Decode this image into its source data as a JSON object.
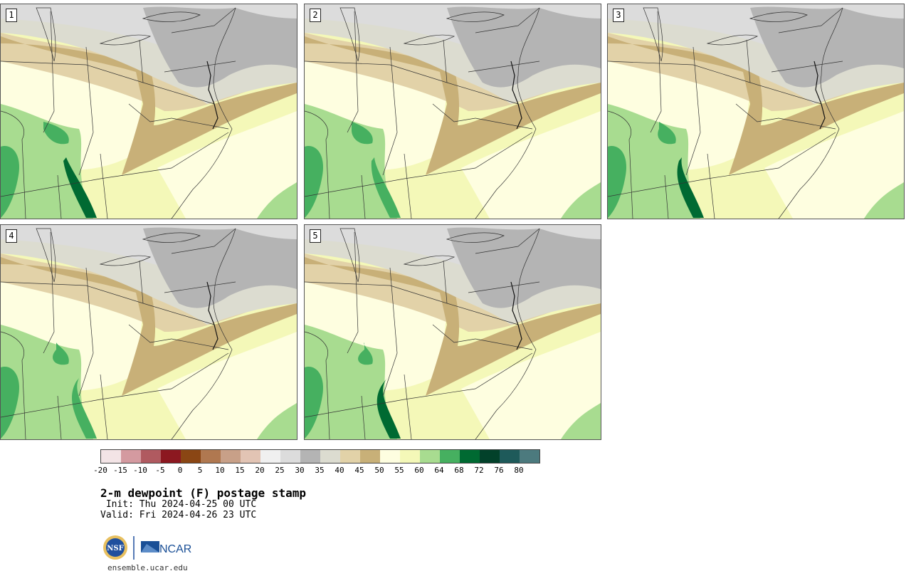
{
  "panels": [
    {
      "label": "1",
      "variant": 0
    },
    {
      "label": "2",
      "variant": 1
    },
    {
      "label": "3",
      "variant": 2
    },
    {
      "label": "4",
      "variant": 3
    },
    {
      "label": "5",
      "variant": 4
    }
  ],
  "colorbar": {
    "colors": [
      "#f3e4e6",
      "#d49aa0",
      "#b05a60",
      "#8c1820",
      "#8a4614",
      "#b07850",
      "#c8a088",
      "#e2c4b4",
      "#f0f0f0",
      "#dcdcdc",
      "#b4b4b4",
      "#dcdcd0",
      "#e2d2a8",
      "#c8b078",
      "#fefee0",
      "#f4f8b8",
      "#a8dc90",
      "#46b060",
      "#006a32",
      "#02412a",
      "#1e5a5a",
      "#4c7a7e"
    ],
    "ticks": [
      "-20",
      "-15",
      "-10",
      "-5",
      "0",
      "5",
      "10",
      "15",
      "20",
      "25",
      "30",
      "35",
      "40",
      "45",
      "50",
      "55",
      "60",
      "64",
      "68",
      "72",
      "76",
      "80"
    ]
  },
  "title": "2-m dewpoint (F) postage stamp",
  "init": " Init: Thu 2024-04-25 00 UTC",
  "valid": "Valid: Fri 2024-04-26 23 UTC",
  "logos": {
    "nsf": "NSF",
    "ncar": "NCAR"
  },
  "website": "ensemble.ucar.edu"
}
